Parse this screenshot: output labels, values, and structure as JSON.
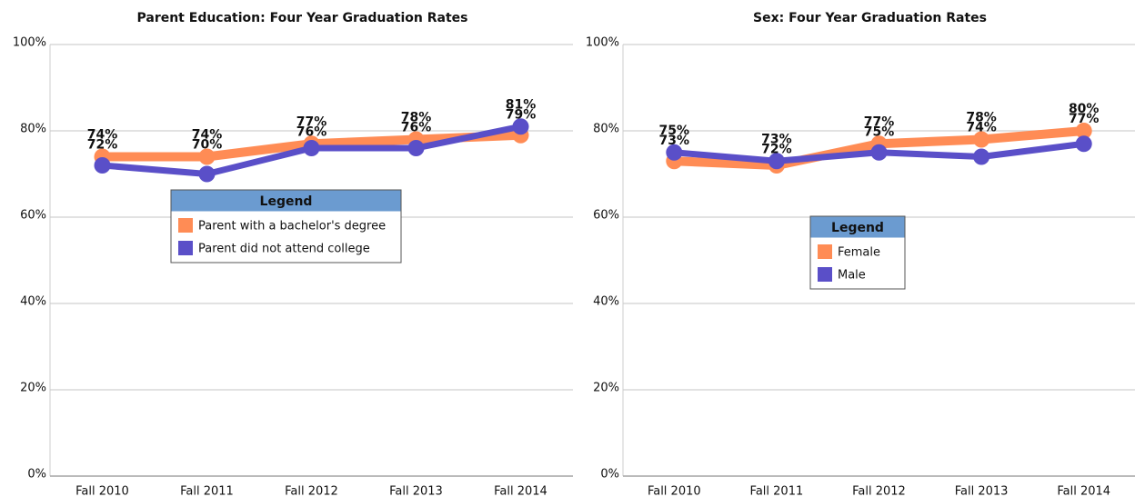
{
  "chart_data": [
    {
      "type": "line",
      "title": "Parent Education: Four Year Graduation Rates",
      "categories": [
        "Fall 2010",
        "Fall 2011",
        "Fall 2012",
        "Fall 2013",
        "Fall 2014"
      ],
      "series": [
        {
          "name": "Parent with a bachelor's degree",
          "color": "#ff8c55",
          "values": [
            74,
            74,
            77,
            78,
            79
          ],
          "value_labels": [
            "74%",
            "74%",
            "77%",
            "78%",
            "79%"
          ]
        },
        {
          "name": "Parent did not attend college",
          "color": "#5a4fc8",
          "values": [
            72,
            70,
            76,
            76,
            81
          ],
          "value_labels": [
            "72%",
            "70%",
            "76%",
            "76%",
            "81%"
          ]
        }
      ],
      "ylim": [
        0,
        100
      ],
      "yticks": [
        {
          "value": 0,
          "label": "0%"
        },
        {
          "value": 20,
          "label": "20%"
        },
        {
          "value": 40,
          "label": "40%"
        },
        {
          "value": 60,
          "label": "60%"
        },
        {
          "value": 80,
          "label": "80%"
        },
        {
          "value": 100,
          "label": "100%"
        }
      ],
      "grid": true,
      "legend_title": "Legend"
    },
    {
      "type": "line",
      "title": "Sex: Four Year Graduation Rates",
      "categories": [
        "Fall 2010",
        "Fall 2011",
        "Fall 2012",
        "Fall 2013",
        "Fall 2014"
      ],
      "series": [
        {
          "name": "Female",
          "color": "#ff8c55",
          "values": [
            73,
            72,
            77,
            78,
            80
          ],
          "value_labels": [
            "73%",
            "72%",
            "77%",
            "78%",
            "80%"
          ]
        },
        {
          "name": "Male",
          "color": "#5a4fc8",
          "values": [
            75,
            73,
            75,
            74,
            77
          ],
          "value_labels": [
            "75%",
            "73%",
            "75%",
            "74%",
            "77%"
          ]
        }
      ],
      "ylim": [
        0,
        100
      ],
      "yticks": [
        {
          "value": 0,
          "label": "0%"
        },
        {
          "value": 20,
          "label": "20%"
        },
        {
          "value": 40,
          "label": "40%"
        },
        {
          "value": 60,
          "label": "60%"
        },
        {
          "value": 80,
          "label": "80%"
        },
        {
          "value": 100,
          "label": "100%"
        }
      ],
      "grid": true,
      "legend_title": "Legend"
    }
  ]
}
